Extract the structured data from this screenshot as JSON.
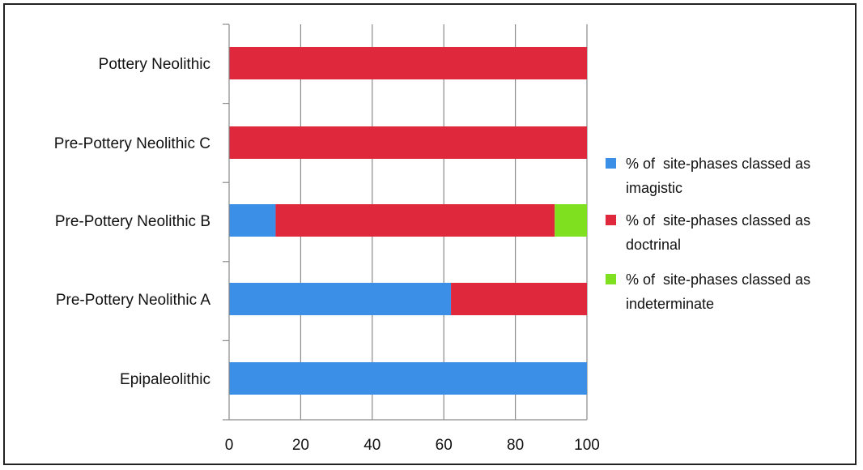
{
  "chart_data": {
    "type": "bar",
    "stacked": true,
    "orientation": "horizontal",
    "categories": [
      "Pottery Neolithic",
      "Pre-Pottery Neolithic  C",
      "Pre-Pottery Neolithic B",
      "Pre-Pottery Neolithic A",
      "Epipaleolithic"
    ],
    "series": [
      {
        "name": "% of  site-phases classed as imagistic",
        "color": "#3b8fe6",
        "values": [
          0,
          0,
          13,
          62,
          100
        ]
      },
      {
        "name": "% of  site-phases classed as doctrinal",
        "color": "#e0283c",
        "values": [
          100,
          100,
          78,
          38,
          0
        ]
      },
      {
        "name": "% of  site-phases classed as indeterminate",
        "color": "#7ee01e",
        "values": [
          0,
          0,
          9,
          0,
          0
        ]
      }
    ],
    "legend": {
      "position": "right",
      "entries": [
        [
          "% of  site-phases classed as",
          "imagistic"
        ],
        [
          "% of  site-phases classed as",
          "doctrinal"
        ],
        [
          "% of  site-phases classed as",
          "indeterminate"
        ]
      ]
    },
    "xlim": [
      0,
      100
    ],
    "xticks": [
      "0",
      "20",
      "40",
      "60",
      "80",
      "100"
    ],
    "grid": "vertical",
    "title": "",
    "xlabel": "",
    "ylabel": ""
  }
}
